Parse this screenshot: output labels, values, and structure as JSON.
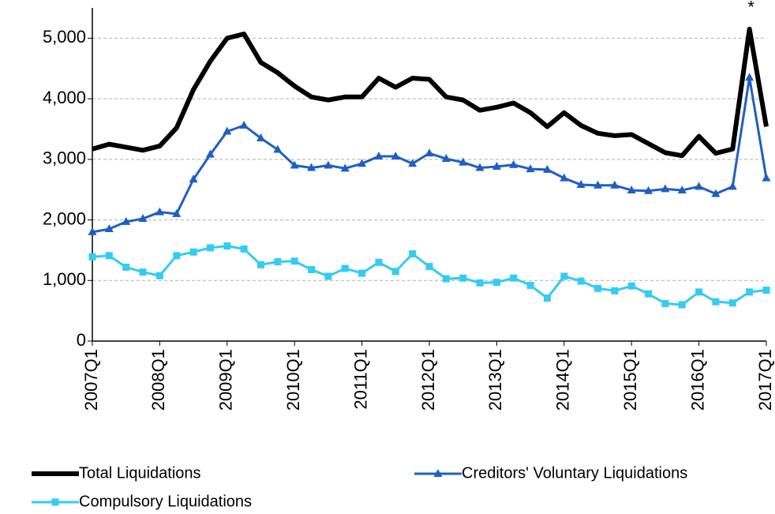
{
  "chart_data": {
    "type": "line",
    "categories": [
      "2007Q1",
      null,
      null,
      null,
      "2008Q1",
      null,
      null,
      null,
      "2009Q1",
      null,
      null,
      null,
      "2010Q1",
      null,
      null,
      null,
      "2011Q1",
      null,
      null,
      null,
      "2012Q1",
      null,
      null,
      null,
      "2013Q1",
      null,
      null,
      null,
      "2014Q1",
      null,
      null,
      null,
      "2015Q1",
      null,
      null,
      null,
      "2016Q1",
      null,
      null,
      null,
      "2017Q1"
    ],
    "series": [
      {
        "name": "Total Liquidations",
        "color": "#000000",
        "marker": "none",
        "line_width": 6,
        "values": [
          3170,
          3250,
          3200,
          3150,
          3220,
          3520,
          4150,
          4620,
          5000,
          5070,
          4600,
          4430,
          4210,
          4030,
          3980,
          4030,
          4030,
          4340,
          4190,
          4340,
          4320,
          4030,
          3980,
          3810,
          3860,
          3930,
          3770,
          3540,
          3770,
          3560,
          3430,
          3390,
          3410,
          3260,
          3110,
          3060,
          3380,
          3100,
          3170,
          5150,
          3540
        ]
      },
      {
        "name": "Creditors' Voluntary Liquidations",
        "color": "#1f5fc4",
        "marker": "triangle",
        "line_width": 3,
        "values": [
          1800,
          1850,
          1970,
          2020,
          2130,
          2100,
          2670,
          3080,
          3460,
          3560,
          3350,
          3160,
          2900,
          2860,
          2900,
          2850,
          2930,
          3050,
          3050,
          2930,
          3100,
          3010,
          2950,
          2860,
          2880,
          2910,
          2840,
          2830,
          2690,
          2580,
          2570,
          2570,
          2490,
          2480,
          2510,
          2490,
          2550,
          2430,
          2550,
          4350,
          2690
        ]
      },
      {
        "name": "Compulsory Liquidations",
        "color": "#33ccf2",
        "marker": "square",
        "line_width": 3,
        "values": [
          1390,
          1410,
          1220,
          1140,
          1080,
          1410,
          1470,
          1540,
          1570,
          1520,
          1260,
          1310,
          1320,
          1180,
          1070,
          1200,
          1120,
          1300,
          1150,
          1440,
          1230,
          1030,
          1040,
          960,
          970,
          1040,
          920,
          710,
          1070,
          990,
          870,
          830,
          910,
          780,
          620,
          600,
          810,
          650,
          630,
          810,
          840
        ]
      }
    ],
    "annotation": {
      "text": "*",
      "index": 39
    },
    "ylim": [
      0,
      5500
    ],
    "yticks": [
      0,
      {
        "value": 1000,
        "label": "1,000"
      },
      {
        "value": 2000,
        "label": "2,000"
      },
      {
        "value": 3000,
        "label": "3,000"
      },
      {
        "value": 4000,
        "label": "4,000"
      },
      {
        "value": 5000,
        "label": "5,000"
      }
    ],
    "grid": true,
    "legend": "bottom"
  }
}
